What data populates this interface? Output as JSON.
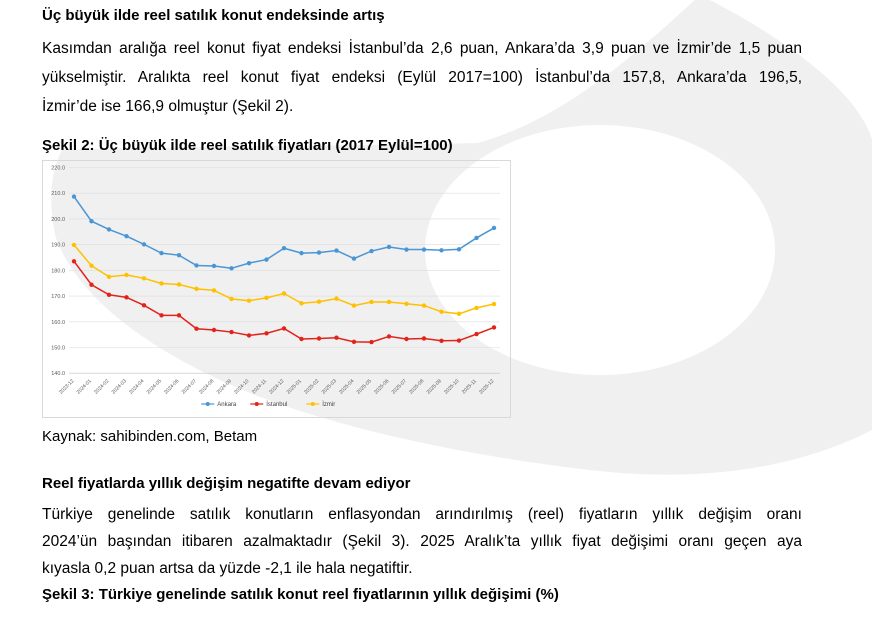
{
  "document": {
    "heading1": "Üç büyük ilde reel satılık konut endeksinde artış",
    "paragraph1_lines": [
      "Kasımdan aralığa reel konut fiyat endeksi İstanbul’da 2,6 puan, Ankara’da 3,9 puan ve İzmir’de 1,5 puan",
      "yükselmiştir. Aralıkta reel konut fiyat endeksi (Eylül 2017=100) İstanbul’da 157,8, Ankara’da 196,5,",
      "İzmir’de ise 166,9 olmuştur (Şekil 2)."
    ],
    "figure2_caption": "Şekil 2: Üç büyük ilde reel satılık fiyatları (2017 Eylül=100)",
    "source_line": "Kaynak: sahibinden.com, Betam",
    "heading2": "Reel fiyatlarda yıllık değişim negatifte devam ediyor",
    "paragraph2_lines": [
      "Türkiye genelinde satılık konutların enflasyondan arındırılmış (reel) fiyatların yıllık değişim oranı",
      "2024’ün başından itibaren azalmaktadır (Şekil 3). 2025 Aralık’ta yıllık fiyat değişimi oranı geçen aya",
      "kıyasla 0,2 puan artsa da yüzde -2,1 ile hala negatiftir."
    ],
    "figure3_caption": "Şekil 3: Türkiye genelinde satılık konut reel fiyatlarının yıllık değişimi (%)"
  },
  "chart_data": {
    "type": "line",
    "title": "",
    "xlabel": "",
    "ylabel": "",
    "ylim": [
      140,
      220
    ],
    "ytick_step": 10,
    "grid": true,
    "legend_position": "bottom",
    "axis_label_color": "#595959",
    "grid_color": "#dcdcdc",
    "categories": [
      "2023-12",
      "2024-01",
      "2024-02",
      "2024-03",
      "2024-04",
      "2024-05",
      "2024-06",
      "2024-07",
      "2024-08",
      "2024-09",
      "2024-10",
      "2024-11",
      "2024-12",
      "2025-01",
      "2025-02",
      "2025-03",
      "2025-04",
      "2025-05",
      "2025-06",
      "2025-07",
      "2025-08",
      "2025-09",
      "2025-10",
      "2025-11",
      "2025-12"
    ],
    "series": [
      {
        "name": "Ankara",
        "color": "#4A96D5",
        "values": [
          208.7,
          199.1,
          195.9,
          193.3,
          190.1,
          186.7,
          185.9,
          181.9,
          181.7,
          180.8,
          182.8,
          184.2,
          188.6,
          186.7,
          186.9,
          187.7,
          184.6,
          187.5,
          189.1,
          188.1,
          188.1,
          187.8,
          188.2,
          192.6,
          196.5
        ]
      },
      {
        "name": "İstanbul",
        "color": "#E2231A",
        "values": [
          183.5,
          174.4,
          170.5,
          169.5,
          166.4,
          162.5,
          162.5,
          157.3,
          156.8,
          156.0,
          154.7,
          155.5,
          157.4,
          153.3,
          153.5,
          153.8,
          152.2,
          152.1,
          154.3,
          153.3,
          153.5,
          152.6,
          152.7,
          155.2,
          157.8
        ]
      },
      {
        "name": "İzmir",
        "color": "#FFC000",
        "values": [
          189.9,
          181.8,
          177.5,
          178.2,
          176.9,
          174.9,
          174.5,
          172.8,
          172.2,
          168.9,
          168.2,
          169.3,
          171.0,
          167.2,
          167.8,
          169.0,
          166.3,
          167.7,
          167.7,
          167.0,
          166.3,
          163.9,
          163.1,
          165.4,
          166.9
        ]
      }
    ]
  },
  "colors": {
    "watermark": "#f0f0f0",
    "chart_border": "#d9d9d9",
    "text": "#000000"
  }
}
